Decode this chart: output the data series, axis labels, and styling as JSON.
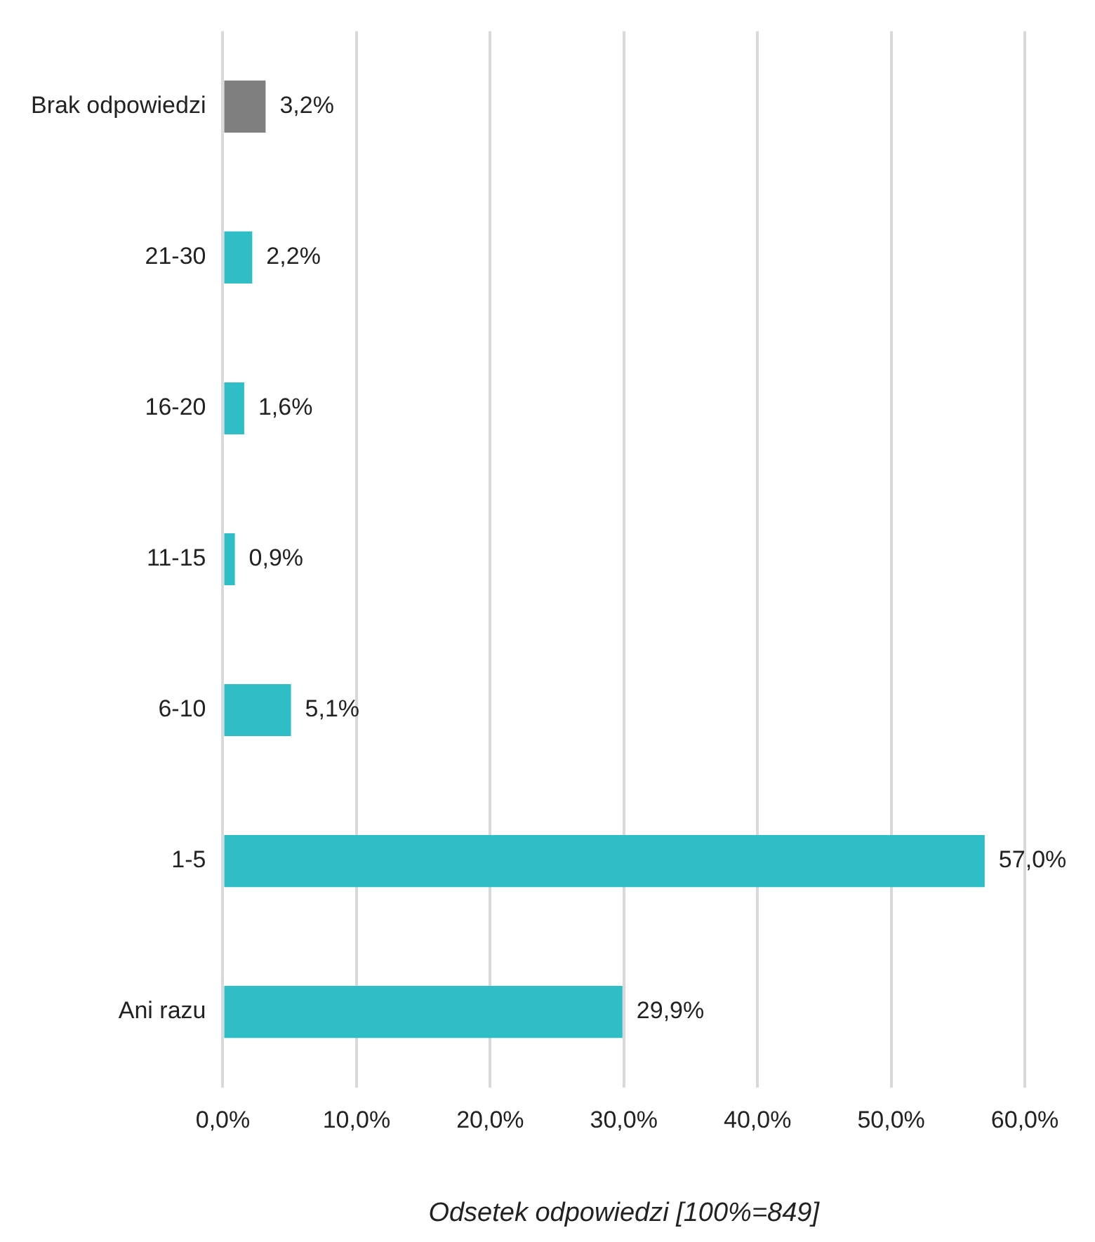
{
  "chart_data": {
    "type": "bar",
    "orientation": "horizontal",
    "xlabel": "Odsetek odpowiedzi [100%=849]",
    "categories": [
      "Brak odpowiedzi",
      "21-30",
      "16-20",
      "11-15",
      "6-10",
      "1-5",
      "Ani razu"
    ],
    "values": [
      3.2,
      2.2,
      1.6,
      0.9,
      5.1,
      57.0,
      29.9
    ],
    "colors": [
      "#7f7f7f",
      "#2fbec6",
      "#2fbec6",
      "#2fbec6",
      "#2fbec6",
      "#2fbec6",
      "#2fbec6"
    ],
    "value_labels": [
      "3,2%",
      "2,2%",
      "1,6%",
      "0,9%",
      "5,1%",
      "57,0%",
      "29,9%"
    ],
    "xlim": [
      0,
      60
    ],
    "xticks": [
      {
        "value": 0,
        "label": "0,0%"
      },
      {
        "value": 10,
        "label": "10,0%"
      },
      {
        "value": 20,
        "label": "20,0%"
      },
      {
        "value": 30,
        "label": "30,0%"
      },
      {
        "value": 40,
        "label": "40,0%"
      },
      {
        "value": 50,
        "label": "50,0%"
      },
      {
        "value": 60,
        "label": "60,0%"
      }
    ],
    "grid": "x",
    "legend": false
  }
}
